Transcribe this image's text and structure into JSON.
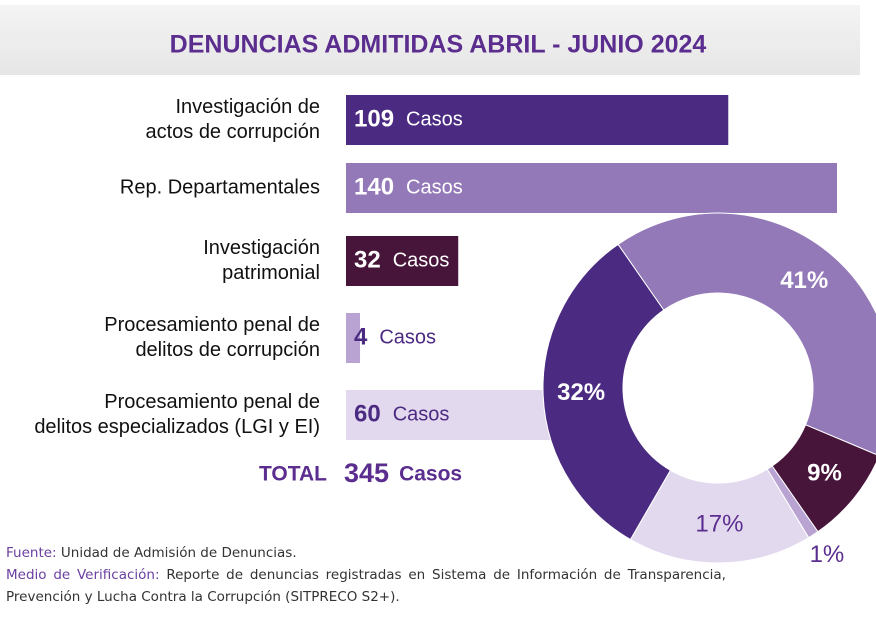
{
  "chart_data": [
    {
      "type": "bar",
      "title": "DENUNCIAS ADMITIDAS ABRIL - JUNIO 2024",
      "categories": [
        [
          "Investigación de",
          "actos de corrupción"
        ],
        [
          "Rep. Departamentales"
        ],
        [
          "Investigación",
          "patrimonial"
        ],
        [
          "Procesamiento penal de",
          "delitos de corrupción"
        ],
        [
          "Procesamiento penal de",
          "delitos especializados (LGI y EI)"
        ]
      ],
      "values": [
        109,
        140,
        32,
        4,
        60
      ],
      "unit": "Casos",
      "colors": [
        "#4b2a82",
        "#9379b8",
        "#47143a",
        "#b9a3d3",
        "#e3d9ee"
      ],
      "total_label": "TOTAL",
      "total": 345
    },
    {
      "type": "pie",
      "values": [
        32,
        41,
        9,
        1,
        17
      ],
      "value_labels": [
        "32%",
        "41%",
        "9%",
        "1%",
        "17%"
      ],
      "colors": [
        "#4b2a82",
        "#9379b8",
        "#47143a",
        "#b9a3d3",
        "#e3d9ee"
      ]
    }
  ],
  "footer": {
    "source_label": "Fuente:",
    "source": "Unidad de Admisión de Denuncias.",
    "verification_label": "Medio de Verificación:",
    "verification": "Reporte de denuncias registradas en Sistema de Información de Transparencia, Prevención y Lucha Contra la Corrupción (SITPRECO S2+)."
  }
}
